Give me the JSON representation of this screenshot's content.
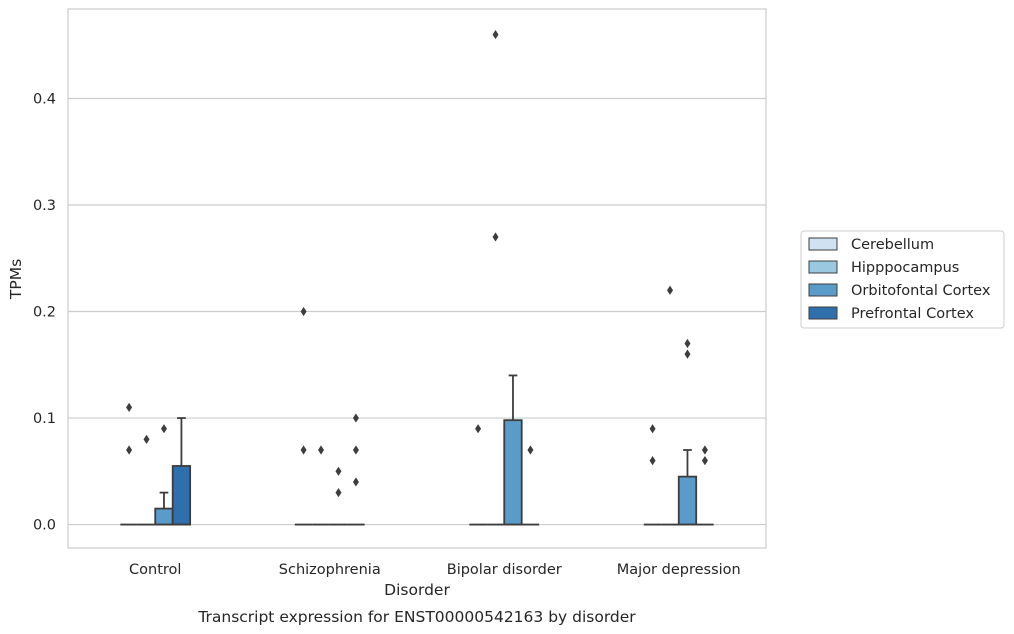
{
  "chart_data": {
    "type": "box",
    "caption": "Transcript expression for ENST00000542163 by disorder",
    "xlabel": "Disorder",
    "ylabel": "TPMs",
    "ylim": [
      -0.022,
      0.484
    ],
    "yticks": [
      0.0,
      0.1,
      0.2,
      0.3,
      0.4
    ],
    "ytick_labels": [
      "0.0",
      "0.1",
      "0.2",
      "0.3",
      "0.4"
    ],
    "grid": "horizontal",
    "legend_position": "right",
    "categories": [
      "Control",
      "Schizophrenia",
      "Bipolar disorder",
      "Major depression"
    ],
    "series": [
      {
        "name": "Cerebellum",
        "color": "#d0e1f2",
        "boxes": [
          {
            "q1": 0,
            "median": 0,
            "q3": 0,
            "whisker_low": 0,
            "whisker_high": 0,
            "outliers": [
              0.11,
              0.07
            ]
          },
          {
            "q1": 0,
            "median": 0,
            "q3": 0,
            "whisker_low": 0,
            "whisker_high": 0,
            "outliers": [
              0.2,
              0.07
            ]
          },
          {
            "q1": 0,
            "median": 0,
            "q3": 0,
            "whisker_low": 0,
            "whisker_high": 0,
            "outliers": [
              0.09
            ]
          },
          {
            "q1": 0,
            "median": 0,
            "q3": 0,
            "whisker_low": 0,
            "whisker_high": 0,
            "outliers": [
              0.09,
              0.06
            ]
          }
        ]
      },
      {
        "name": "Hipppocampus",
        "color": "#9ac8e0",
        "boxes": [
          {
            "q1": 0,
            "median": 0,
            "q3": 0,
            "whisker_low": 0,
            "whisker_high": 0,
            "outliers": [
              0.08
            ]
          },
          {
            "q1": 0,
            "median": 0,
            "q3": 0,
            "whisker_low": 0,
            "whisker_high": 0,
            "outliers": [
              0.07
            ]
          },
          {
            "q1": 0,
            "median": 0,
            "q3": 0,
            "whisker_low": 0,
            "whisker_high": 0,
            "outliers": [
              0.46,
              0.27
            ]
          },
          {
            "q1": 0,
            "median": 0,
            "q3": 0,
            "whisker_low": 0,
            "whisker_high": 0,
            "outliers": [
              0.22
            ]
          }
        ]
      },
      {
        "name": "Orbitofontal Cortex",
        "color": "#5a9bc9",
        "boxes": [
          {
            "q1": 0,
            "median": 0,
            "q3": 0.015,
            "whisker_low": 0,
            "whisker_high": 0.03,
            "outliers": [
              0.09
            ]
          },
          {
            "q1": 0,
            "median": 0,
            "q3": 0,
            "whisker_low": 0,
            "whisker_high": 0,
            "outliers": [
              0.05,
              0.03
            ]
          },
          {
            "q1": 0,
            "median": 0,
            "q3": 0.098,
            "whisker_low": 0,
            "whisker_high": 0.14,
            "outliers": []
          },
          {
            "q1": 0,
            "median": 0,
            "q3": 0.045,
            "whisker_low": 0,
            "whisker_high": 0.07,
            "outliers": [
              0.17,
              0.16
            ]
          }
        ]
      },
      {
        "name": "Prefrontal Cortex",
        "color": "#2e6fac",
        "boxes": [
          {
            "q1": 0,
            "median": 0,
            "q3": 0.055,
            "whisker_low": 0,
            "whisker_high": 0.1,
            "outliers": []
          },
          {
            "q1": 0,
            "median": 0,
            "q3": 0,
            "whisker_low": 0,
            "whisker_high": 0,
            "outliers": [
              0.1,
              0.07,
              0.04
            ]
          },
          {
            "q1": 0,
            "median": 0,
            "q3": 0,
            "whisker_low": 0,
            "whisker_high": 0,
            "outliers": [
              0.07
            ]
          },
          {
            "q1": 0,
            "median": 0,
            "q3": 0,
            "whisker_low": 0,
            "whisker_high": 0,
            "outliers": [
              0.07,
              0.06
            ]
          }
        ]
      }
    ]
  }
}
